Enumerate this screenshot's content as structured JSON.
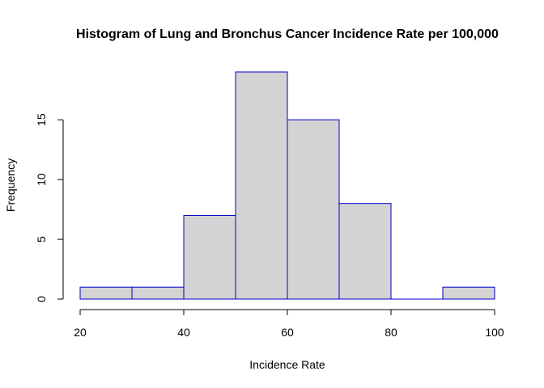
{
  "chart_data": {
    "type": "bar",
    "title": "Histogram of Lung and Bronchus Cancer Incidence Rate per 100,000",
    "xlabel": "Incidence Rate",
    "ylabel": "Frequency",
    "bins": [
      [
        20,
        30
      ],
      [
        30,
        40
      ],
      [
        40,
        50
      ],
      [
        50,
        60
      ],
      [
        60,
        70
      ],
      [
        70,
        80
      ],
      [
        80,
        90
      ],
      [
        90,
        100
      ]
    ],
    "values": [
      1,
      1,
      7,
      19,
      15,
      8,
      0,
      1
    ],
    "xlim": [
      20,
      100
    ],
    "ylim": [
      0,
      19
    ],
    "xticks": [
      20,
      40,
      60,
      80,
      100
    ],
    "yticks": [
      0,
      5,
      10,
      15
    ],
    "bar_fill": "#d3d3d3",
    "bar_edge": "#0000cd",
    "grid": false
  }
}
